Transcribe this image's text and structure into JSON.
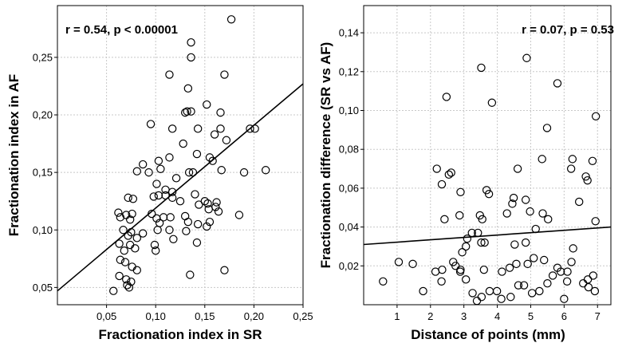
{
  "chart_data": [
    {
      "type": "scatter",
      "xlabel": "Fractionation index in SR",
      "ylabel": "Fractionation index in AF",
      "annotation": "r = 0.54, p < 0.00001",
      "xlim": [
        0,
        0.25
      ],
      "ylim": [
        0.035,
        0.295
      ],
      "xticks": [
        0.05,
        0.1,
        0.15,
        0.2,
        0.25
      ],
      "xtick_labels": [
        "0,05",
        "0,10",
        "0,15",
        "0,20",
        "0,25"
      ],
      "yticks": [
        0.05,
        0.1,
        0.15,
        0.2,
        0.25
      ],
      "ytick_labels": [
        "0,05",
        "0,10",
        "0,15",
        "0,20",
        "0,25"
      ],
      "grid": true,
      "regression": [
        [
          0,
          0.047
        ],
        [
          0.25,
          0.227
        ]
      ],
      "points": [
        [
          0.177,
          0.283
        ],
        [
          0.136,
          0.263
        ],
        [
          0.136,
          0.25
        ],
        [
          0.133,
          0.223
        ],
        [
          0.114,
          0.235
        ],
        [
          0.17,
          0.235
        ],
        [
          0.152,
          0.209
        ],
        [
          0.132,
          0.203
        ],
        [
          0.136,
          0.203
        ],
        [
          0.13,
          0.202
        ],
        [
          0.095,
          0.192
        ],
        [
          0.166,
          0.202
        ],
        [
          0.117,
          0.188
        ],
        [
          0.143,
          0.188
        ],
        [
          0.16,
          0.183
        ],
        [
          0.172,
          0.178
        ],
        [
          0.196,
          0.188
        ],
        [
          0.201,
          0.188
        ],
        [
          0.166,
          0.188
        ],
        [
          0.128,
          0.175
        ],
        [
          0.142,
          0.166
        ],
        [
          0.114,
          0.163
        ],
        [
          0.155,
          0.163
        ],
        [
          0.158,
          0.16
        ],
        [
          0.103,
          0.16
        ],
        [
          0.087,
          0.157
        ],
        [
          0.105,
          0.153
        ],
        [
          0.121,
          0.145
        ],
        [
          0.134,
          0.15
        ],
        [
          0.167,
          0.152
        ],
        [
          0.212,
          0.152
        ],
        [
          0.19,
          0.15
        ],
        [
          0.081,
          0.151
        ],
        [
          0.093,
          0.15
        ],
        [
          0.138,
          0.15
        ],
        [
          0.101,
          0.14
        ],
        [
          0.11,
          0.135
        ],
        [
          0.117,
          0.133
        ],
        [
          0.117,
          0.128
        ],
        [
          0.14,
          0.131
        ],
        [
          0.153,
          0.123
        ],
        [
          0.077,
          0.127
        ],
        [
          0.072,
          0.128
        ],
        [
          0.098,
          0.129
        ],
        [
          0.103,
          0.13
        ],
        [
          0.11,
          0.13
        ],
        [
          0.125,
          0.125
        ],
        [
          0.144,
          0.122
        ],
        [
          0.15,
          0.125
        ],
        [
          0.154,
          0.118
        ],
        [
          0.162,
          0.124
        ],
        [
          0.161,
          0.12
        ],
        [
          0.164,
          0.116
        ],
        [
          0.185,
          0.113
        ],
        [
          0.062,
          0.115
        ],
        [
          0.07,
          0.113
        ],
        [
          0.064,
          0.111
        ],
        [
          0.076,
          0.114
        ],
        [
          0.074,
          0.109
        ],
        [
          0.096,
          0.114
        ],
        [
          0.101,
          0.11
        ],
        [
          0.108,
          0.111
        ],
        [
          0.115,
          0.111
        ],
        [
          0.13,
          0.112
        ],
        [
          0.133,
          0.107
        ],
        [
          0.143,
          0.105
        ],
        [
          0.155,
          0.107
        ],
        [
          0.102,
          0.1
        ],
        [
          0.104,
          0.106
        ],
        [
          0.114,
          0.1
        ],
        [
          0.131,
          0.099
        ],
        [
          0.152,
          0.103
        ],
        [
          0.067,
          0.1
        ],
        [
          0.075,
          0.098
        ],
        [
          0.081,
          0.093
        ],
        [
          0.072,
          0.095
        ],
        [
          0.087,
          0.097
        ],
        [
          0.063,
          0.088
        ],
        [
          0.068,
          0.082
        ],
        [
          0.074,
          0.087
        ],
        [
          0.079,
          0.084
        ],
        [
          0.099,
          0.087
        ],
        [
          0.1,
          0.082
        ],
        [
          0.118,
          0.092
        ],
        [
          0.142,
          0.089
        ],
        [
          0.064,
          0.074
        ],
        [
          0.069,
          0.072
        ],
        [
          0.076,
          0.068
        ],
        [
          0.081,
          0.065
        ],
        [
          0.063,
          0.06
        ],
        [
          0.07,
          0.057
        ],
        [
          0.075,
          0.055
        ],
        [
          0.071,
          0.052
        ],
        [
          0.073,
          0.05
        ],
        [
          0.057,
          0.047
        ],
        [
          0.135,
          0.061
        ],
        [
          0.17,
          0.065
        ]
      ]
    },
    {
      "type": "scatter",
      "xlabel": "Distance of points (mm)",
      "ylabel": "Fractionation difference (SR vs AF)",
      "annotation": "r = 0.07, p = 0.53",
      "xlim": [
        0,
        7.4
      ],
      "ylim": [
        0,
        0.154
      ],
      "xticks": [
        1,
        2,
        3,
        4,
        5,
        6,
        7
      ],
      "xtick_labels": [
        "1",
        "2",
        "3",
        "4",
        "5",
        "6",
        "7"
      ],
      "yticks": [
        0.02,
        0.04,
        0.06,
        0.08,
        0.1,
        0.12,
        0.14
      ],
      "ytick_labels": [
        "0,02",
        "0,04",
        "0,06",
        "0,08",
        "0,10",
        "0,12",
        "0,14"
      ],
      "grid": true,
      "regression": [
        [
          0,
          0.031
        ],
        [
          7.4,
          0.04
        ]
      ],
      "points": [
        [
          4.88,
          0.127
        ],
        [
          3.52,
          0.122
        ],
        [
          5.8,
          0.114
        ],
        [
          2.48,
          0.107
        ],
        [
          3.84,
          0.104
        ],
        [
          6.95,
          0.097
        ],
        [
          5.49,
          0.091
        ],
        [
          5.34,
          0.075
        ],
        [
          6.25,
          0.075
        ],
        [
          6.85,
          0.074
        ],
        [
          4.61,
          0.07
        ],
        [
          6.21,
          0.07
        ],
        [
          2.19,
          0.07
        ],
        [
          2.55,
          0.067
        ],
        [
          2.62,
          0.068
        ],
        [
          6.65,
          0.066
        ],
        [
          6.7,
          0.064
        ],
        [
          2.34,
          0.062
        ],
        [
          3.68,
          0.059
        ],
        [
          3.75,
          0.057
        ],
        [
          2.9,
          0.058
        ],
        [
          4.45,
          0.052
        ],
        [
          4.49,
          0.055
        ],
        [
          4.85,
          0.054
        ],
        [
          6.45,
          0.053
        ],
        [
          3.48,
          0.046
        ],
        [
          3.55,
          0.044
        ],
        [
          2.87,
          0.046
        ],
        [
          2.42,
          0.044
        ],
        [
          4.29,
          0.047
        ],
        [
          4.98,
          0.048
        ],
        [
          5.36,
          0.047
        ],
        [
          5.52,
          0.044
        ],
        [
          6.94,
          0.043
        ],
        [
          3.24,
          0.037
        ],
        [
          3.42,
          0.037
        ],
        [
          4.85,
          0.032
        ],
        [
          4.52,
          0.031
        ],
        [
          5.15,
          0.039
        ],
        [
          3.52,
          0.032
        ],
        [
          3.62,
          0.032
        ],
        [
          3.06,
          0.03
        ],
        [
          2.95,
          0.027
        ],
        [
          6.27,
          0.029
        ],
        [
          3.1,
          0.034
        ],
        [
          2.35,
          0.018
        ],
        [
          2.68,
          0.022
        ],
        [
          2.75,
          0.02
        ],
        [
          2.9,
          0.018
        ],
        [
          3.6,
          0.018
        ],
        [
          4.14,
          0.017
        ],
        [
          4.37,
          0.019
        ],
        [
          4.57,
          0.021
        ],
        [
          4.91,
          0.021
        ],
        [
          5.09,
          0.024
        ],
        [
          5.4,
          0.023
        ],
        [
          5.8,
          0.019
        ],
        [
          5.9,
          0.017
        ],
        [
          6.1,
          0.017
        ],
        [
          6.22,
          0.022
        ],
        [
          6.71,
          0.013
        ],
        [
          6.87,
          0.015
        ],
        [
          6.92,
          0.007
        ],
        [
          6.73,
          0.009
        ],
        [
          6.57,
          0.011
        ],
        [
          6.09,
          0.012
        ],
        [
          6.0,
          0.003
        ],
        [
          5.66,
          0.015
        ],
        [
          5.5,
          0.011
        ],
        [
          5.26,
          0.007
        ],
        [
          5.04,
          0.006
        ],
        [
          4.8,
          0.01
        ],
        [
          4.63,
          0.01
        ],
        [
          4.4,
          0.004
        ],
        [
          4.12,
          0.003
        ],
        [
          3.99,
          0.007
        ],
        [
          3.77,
          0.007
        ],
        [
          3.53,
          0.004
        ],
        [
          3.39,
          0.002
        ],
        [
          3.26,
          0.006
        ],
        [
          3.06,
          0.013
        ],
        [
          2.89,
          0.017
        ],
        [
          2.33,
          0.012
        ],
        [
          2.15,
          0.017
        ],
        [
          1.78,
          0.007
        ],
        [
          1.47,
          0.021
        ],
        [
          1.05,
          0.022
        ],
        [
          0.58,
          0.012
        ]
      ]
    }
  ]
}
